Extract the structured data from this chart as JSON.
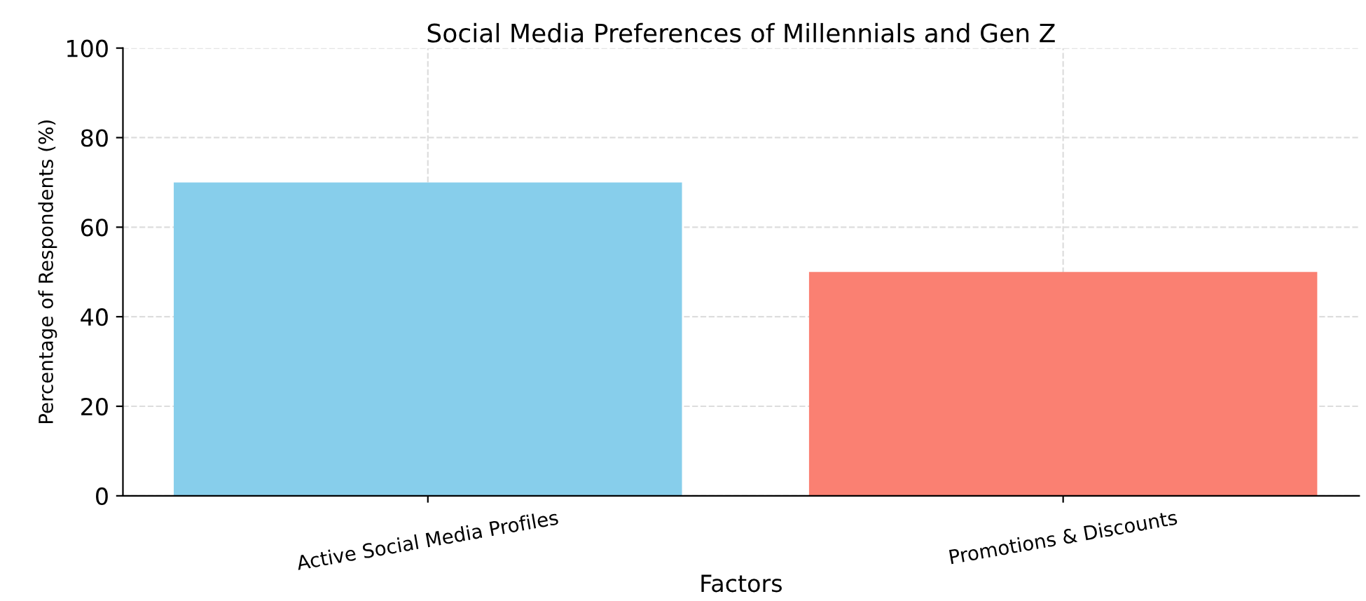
{
  "chart_data": {
    "type": "bar",
    "title": "Social Media Preferences of Millennials and Gen Z",
    "xlabel": "Factors",
    "ylabel": "Percentage of Respondents (%)",
    "categories": [
      "Active Social Media Profiles",
      "Promotions & Discounts"
    ],
    "values": [
      70,
      50
    ],
    "colors": [
      "#87ceeb",
      "#fa8072"
    ],
    "ylim": [
      0,
      100
    ],
    "yticks": [
      0,
      20,
      40,
      60,
      80,
      100
    ],
    "grid": true
  }
}
